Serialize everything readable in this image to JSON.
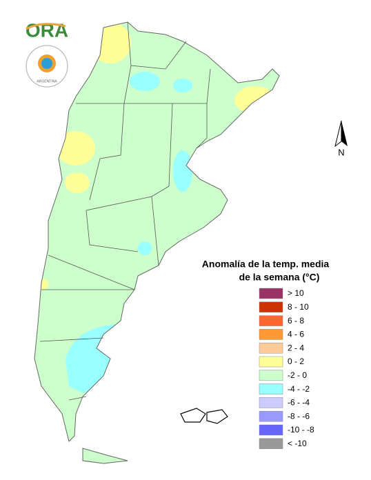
{
  "logo": {
    "text": "ORA"
  },
  "seal": {
    "text": "ARGENTINA"
  },
  "north": {
    "text": "N"
  },
  "legend": {
    "title": [
      "Anomalía de la temp. media",
      "de la semana (°C)"
    ],
    "items": [
      {
        "label": "> 10",
        "color": "#993366"
      },
      {
        "label": "8 - 10",
        "color": "#cc3300"
      },
      {
        "label": "6 - 8",
        "color": "#ff6633"
      },
      {
        "label": "4 - 6",
        "color": "#ff9933"
      },
      {
        "label": "2 - 4",
        "color": "#ffcc99"
      },
      {
        "label": "0 - 2",
        "color": "#ffff99"
      },
      {
        "label": "-2 - 0",
        "color": "#ccffcc"
      },
      {
        "label": "-4 - -2",
        "color": "#99ffff"
      },
      {
        "label": "-6 - -4",
        "color": "#ccccff"
      },
      {
        "label": "-8 - -6",
        "color": "#9999ff"
      },
      {
        "label": "-10 - -8",
        "color": "#6666ff"
      },
      {
        "label": "< -10",
        "color": "#999999"
      }
    ]
  }
}
